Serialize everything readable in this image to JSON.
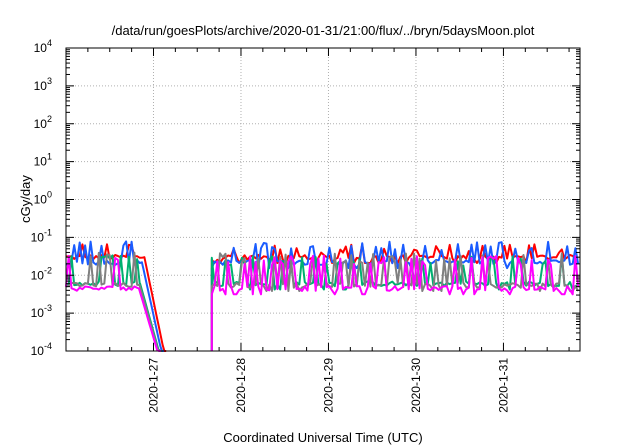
{
  "chart_data": {
    "type": "line",
    "title": "/data/run/goesPlots/archive/2020-01-31/21:00/flux/../bryn/5daysMoon.plot",
    "xlabel": "Coordinated Universal Time (UTC)",
    "ylabel": "cGy/day",
    "yscale": "log",
    "ylim": [
      0.0001,
      10000
    ],
    "xlim": [
      "2020-01-26T00:00",
      "2020-01-31T21:00"
    ],
    "grid": true,
    "legend": "none",
    "y_tick_labels": [
      {
        "base": "10",
        "exp": "-4"
      },
      {
        "base": "10",
        "exp": "-3"
      },
      {
        "base": "10",
        "exp": "-2"
      },
      {
        "base": "10",
        "exp": "-1"
      },
      {
        "base": "10",
        "exp": "0"
      },
      {
        "base": "10",
        "exp": "1"
      },
      {
        "base": "10",
        "exp": "2"
      },
      {
        "base": "10",
        "exp": "3"
      },
      {
        "base": "10",
        "exp": "4"
      }
    ],
    "x_ticks": [
      {
        "time": "2020-01-27T00:00",
        "label": "2020-1-27"
      },
      {
        "time": "2020-01-28T00:00",
        "label": "2020-1-28"
      },
      {
        "time": "2020-01-29T00:00",
        "label": "2020-1-29"
      },
      {
        "time": "2020-01-30T00:00",
        "label": "2020-1-30"
      },
      {
        "time": "2020-01-31T00:00",
        "label": "2020-1-31"
      }
    ],
    "data_gap": [
      "2020-01-27T04:00",
      "2020-01-27T16:00"
    ],
    "series": [
      {
        "color": "#ff0000",
        "baseline": 0.03,
        "spike_max": 0.06,
        "dropoff_end": "2020-01-27T03:30"
      },
      {
        "color": "#1a5cff",
        "baseline": 0.022,
        "spike_max": 0.07,
        "dropoff_end": "2020-01-27T02:50"
      },
      {
        "color": "#00b070",
        "baseline": 0.006,
        "spike_max": 0.03,
        "dropoff_end": "2020-01-27T02:20"
      },
      {
        "color": "#808080",
        "baseline": 0.0055,
        "spike_max": 0.035,
        "dropoff_end": "2020-01-27T02:10"
      },
      {
        "color": "#ff00ff",
        "baseline": 0.0045,
        "spike_max": 0.03,
        "dropoff_end": "2020-01-27T02:00"
      }
    ]
  }
}
